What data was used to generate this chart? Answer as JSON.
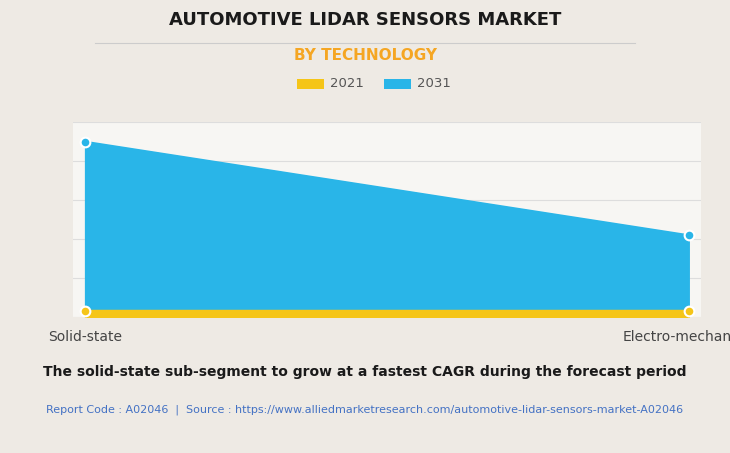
{
  "title": "AUTOMOTIVE LIDAR SENSORS MARKET",
  "subtitle": "BY TECHNOLOGY",
  "categories": [
    "Solid-state",
    "Electro-mechanical"
  ],
  "series": [
    {
      "label": "2021",
      "values": [
        0.03,
        0.03
      ],
      "color": "#F5C518"
    },
    {
      "label": "2031",
      "values": [
        0.9,
        0.42
      ],
      "color": "#29B5E8"
    }
  ],
  "ylim": [
    0,
    1.0
  ],
  "background_color": "#EEEAE4",
  "plot_background_color": "#F7F6F3",
  "grid_color": "#DDDDDD",
  "title_fontsize": 13,
  "subtitle_fontsize": 11,
  "subtitle_color": "#F5A623",
  "caption_bold": "The solid-state sub-segment to grow at a fastest CAGR during the forecast period",
  "caption_source": "Report Code : A02046  |  Source : https://www.alliedmarketresearch.com/automotive-lidar-sensors-market-A02046",
  "caption_color": "#4472C4",
  "marker_size": 7,
  "legend_label_color": "#555555",
  "xtick_fontsize": 10,
  "caption_bold_fontsize": 10,
  "caption_source_fontsize": 8,
  "n_gridlines": 5,
  "title_color": "#1A1A1A",
  "separator_color": "#CCCCCC"
}
